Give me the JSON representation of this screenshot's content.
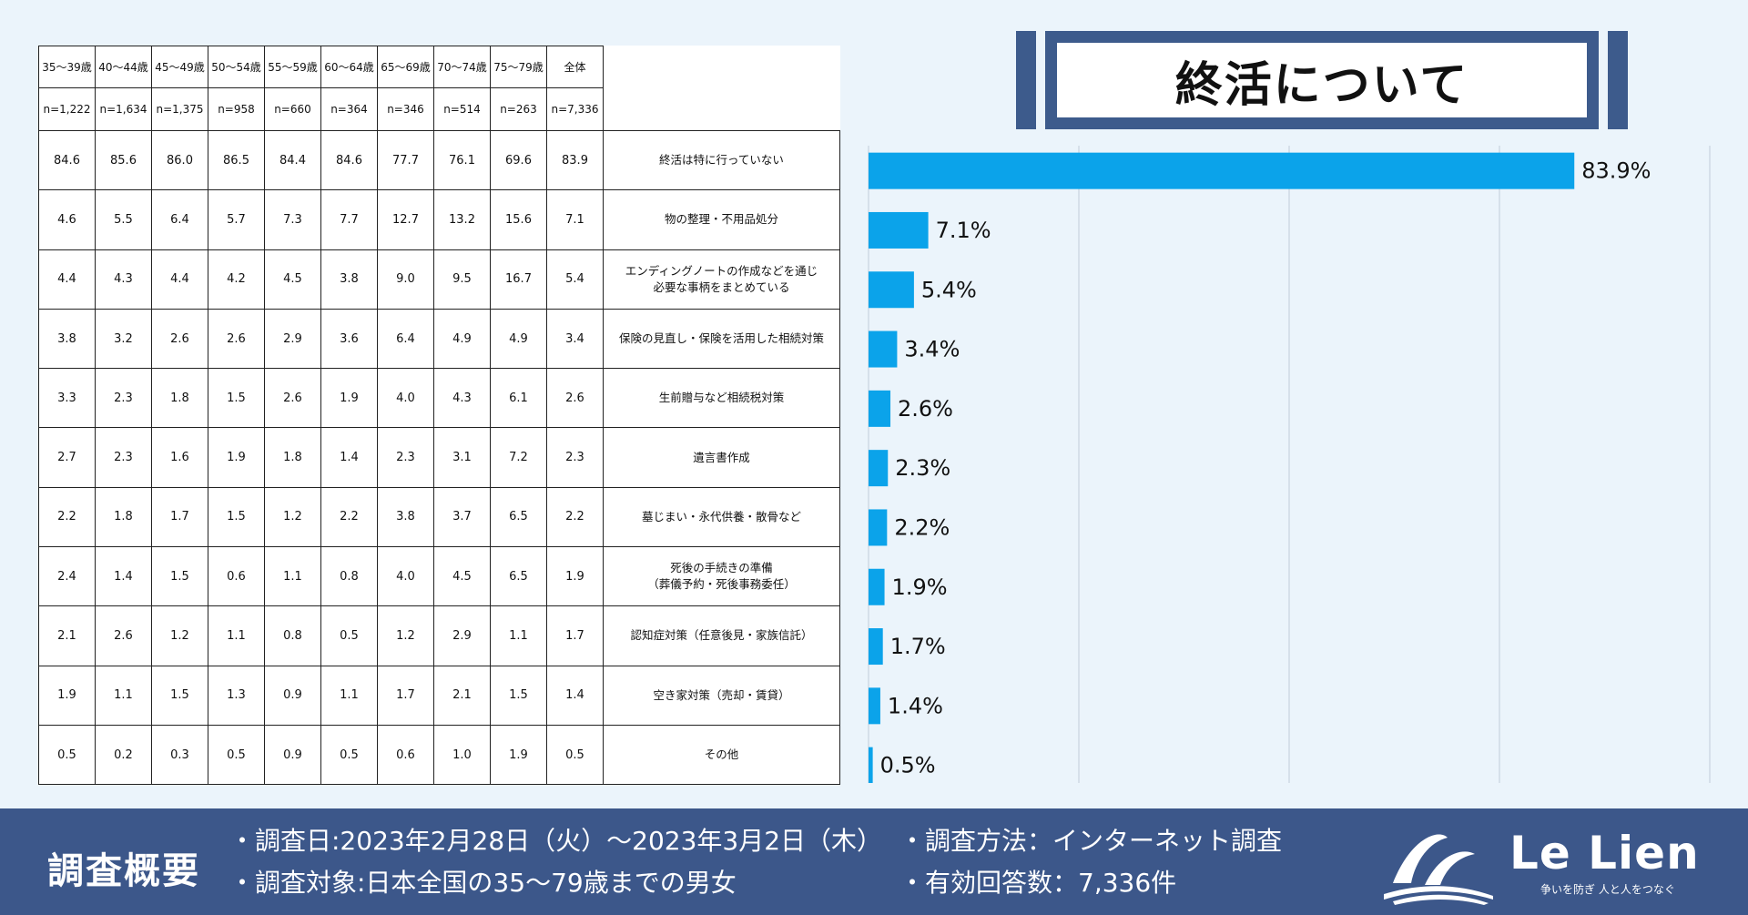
{
  "title": "終活について",
  "table": {
    "columns": [
      "35～39歳",
      "40～44歳",
      "45～49歳",
      "50～54歳",
      "55～59歳",
      "60～64歳",
      "65～69歳",
      "70～74歳",
      "75～79歳",
      "全体"
    ],
    "counts": [
      "n=1,222",
      "n=1,634",
      "n=1,375",
      "n=958",
      "n=660",
      "n=364",
      "n=346",
      "n=514",
      "n=263",
      "n=7,336"
    ],
    "rows": [
      {
        "label": "終活は特に行っていない",
        "values": [
          "84.6",
          "85.6",
          "86.0",
          "86.5",
          "84.4",
          "84.6",
          "77.7",
          "76.1",
          "69.6",
          "83.9"
        ]
      },
      {
        "label": "物の整理・不用品処分",
        "values": [
          "4.6",
          "5.5",
          "6.4",
          "5.7",
          "7.3",
          "7.7",
          "12.7",
          "13.2",
          "15.6",
          "7.1"
        ]
      },
      {
        "label": "エンディングノートの作成などを通じ\n必要な事柄をまとめている",
        "values": [
          "4.4",
          "4.3",
          "4.4",
          "4.2",
          "4.5",
          "3.8",
          "9.0",
          "9.5",
          "16.7",
          "5.4"
        ]
      },
      {
        "label": "保険の見直し・保険を活用した相続対策",
        "values": [
          "3.8",
          "3.2",
          "2.6",
          "2.6",
          "2.9",
          "3.6",
          "6.4",
          "4.9",
          "4.9",
          "3.4"
        ]
      },
      {
        "label": "生前贈与など相続税対策",
        "values": [
          "3.3",
          "2.3",
          "1.8",
          "1.5",
          "2.6",
          "1.9",
          "4.0",
          "4.3",
          "6.1",
          "2.6"
        ]
      },
      {
        "label": "遺言書作成",
        "values": [
          "2.7",
          "2.3",
          "1.6",
          "1.9",
          "1.8",
          "1.4",
          "2.3",
          "3.1",
          "7.2",
          "2.3"
        ]
      },
      {
        "label": "墓じまい・永代供養・散骨など",
        "values": [
          "2.2",
          "1.8",
          "1.7",
          "1.5",
          "1.2",
          "2.2",
          "3.8",
          "3.7",
          "6.5",
          "2.2"
        ]
      },
      {
        "label": "死後の手続きの準備\n（葬儀予約・死後事務委任）",
        "values": [
          "2.4",
          "1.4",
          "1.5",
          "0.6",
          "1.1",
          "0.8",
          "4.0",
          "4.5",
          "6.5",
          "1.9"
        ]
      },
      {
        "label": "認知症対策（任意後見・家族信託）",
        "values": [
          "2.1",
          "2.6",
          "1.2",
          "1.1",
          "0.8",
          "0.5",
          "1.2",
          "2.9",
          "1.1",
          "1.7"
        ]
      },
      {
        "label": "空き家対策（売却・賃貸）",
        "values": [
          "1.9",
          "1.1",
          "1.5",
          "1.3",
          "0.9",
          "1.1",
          "1.7",
          "2.1",
          "1.5",
          "1.4"
        ]
      },
      {
        "label": "その他",
        "values": [
          "0.5",
          "0.2",
          "0.3",
          "0.5",
          "0.9",
          "0.5",
          "0.6",
          "1.0",
          "1.9",
          "0.5"
        ]
      }
    ]
  },
  "chart_data": {
    "type": "bar",
    "orientation": "horizontal",
    "categories": [
      "終活は特に行っていない",
      "物の整理・不用品処分",
      "エンディングノートの作成などを通じ必要な事柄をまとめている",
      "保険の見直し・保険を活用した相続対策",
      "生前贈与など相続税対策",
      "遺言書作成",
      "墓じまい・永代供養・散骨など",
      "死後の手続きの準備（葬儀予約・死後事務委任）",
      "認知症対策（任意後見・家族信託）",
      "空き家対策（売却・賃貸）",
      "その他"
    ],
    "values": [
      83.9,
      7.1,
      5.4,
      3.4,
      2.6,
      2.3,
      2.2,
      1.9,
      1.7,
      1.4,
      0.5
    ],
    "data_labels": [
      "83.9%",
      "7.1%",
      "5.4%",
      "3.4%",
      "2.6%",
      "2.3%",
      "2.2%",
      "1.9%",
      "1.7%",
      "1.4%",
      "0.5%"
    ],
    "xlim": [
      0,
      100
    ],
    "gridlines_x": [
      0,
      25,
      50,
      75,
      100
    ],
    "grid": true,
    "bar_color": "#0ba3ea",
    "grid_color": "#c9d3de"
  },
  "footer": {
    "title": "調査概要",
    "items": [
      "・調査日:2023年2月28日（火）～2023年3月2日（木）",
      "・調査方法：インターネット調査",
      "・調査対象:日本全国の35～79歳までの男女",
      "・有効回答数：7,336件"
    ],
    "logo_text": "Le Lien",
    "logo_tagline": "争いを防ぎ 人と人をつなぐ"
  },
  "colors": {
    "background": "#ebf4fb",
    "footer": "#3c578a",
    "title_frame": "#3d5b8c",
    "bar": "#0ba3ea"
  }
}
